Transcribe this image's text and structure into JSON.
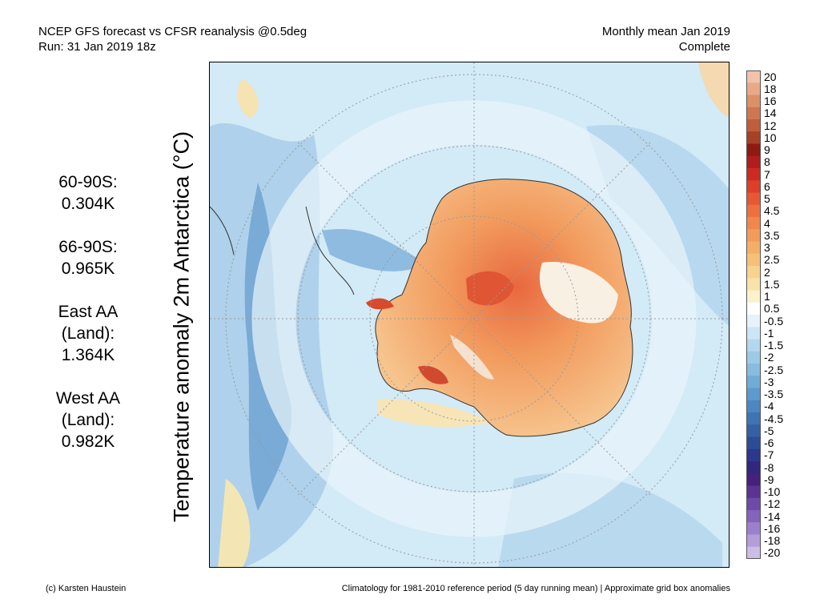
{
  "header": {
    "title_line1": "NCEP GFS forecast vs CFSR reanalysis @0.5deg",
    "title_line2": "Run: 31 Jan 2019 18z",
    "period_line1": "Monthly mean Jan 2019",
    "period_line2": "Complete"
  },
  "stats": [
    {
      "lines": [
        "60-90S:",
        "0.304K"
      ]
    },
    {
      "lines": [
        "66-90S:",
        "0.965K"
      ]
    },
    {
      "lines": [
        "East AA",
        "(Land):",
        "1.364K"
      ]
    },
    {
      "lines": [
        "West AA",
        "(Land):",
        "0.982K"
      ]
    }
  ],
  "map": {
    "ylabel": "Temperature anomaly 2m Antarctica (°C)",
    "colors": {
      "ocean_light": "#d6ecf8",
      "ocean_mid": "#b4d6ee",
      "ocean_dark": "#7fafd8",
      "land_orange": "#f3a56b",
      "land_light": "#f8d2a6",
      "land_red": "#e46a45",
      "warm_yellow": "#f7e9b9"
    }
  },
  "colorbar": {
    "labels": [
      "20",
      "18",
      "16",
      "14",
      "12",
      "10",
      "9",
      "8",
      "7",
      "6",
      "5",
      "4.5",
      "4",
      "3.5",
      "3",
      "2.5",
      "2",
      "1.5",
      "1",
      "0.5",
      "-0.5",
      "-1",
      "-1.5",
      "-2",
      "-2.5",
      "-3",
      "-3.5",
      "-4",
      "-4.5",
      "-5",
      "-6",
      "-7",
      "-8",
      "-9",
      "-10",
      "-12",
      "-14",
      "-16",
      "-18",
      "-20"
    ],
    "colors": [
      "#f2c2a9",
      "#e8a987",
      "#dd9068",
      "#cf7653",
      "#bf5d3d",
      "#a84027",
      "#8f1a12",
      "#b01d1a",
      "#cc2b22",
      "#dd3f28",
      "#e85733",
      "#ee7040",
      "#f1874d",
      "#f39b59",
      "#f5ae66",
      "#f6c078",
      "#f8d28e",
      "#f9e2a8",
      "#fbf1cd",
      "#ffffff",
      "#e6f3fb",
      "#cde6f5",
      "#b3d8ee",
      "#9ccbe7",
      "#86bcdf",
      "#71acd6",
      "#5d9acd",
      "#4c87c2",
      "#3e73b5",
      "#3460a6",
      "#2d4c98",
      "#2b388b",
      "#33267f",
      "#44217d",
      "#5a3394",
      "#6e4aab",
      "#8463bd",
      "#9b80cd",
      "#b39ddb",
      "#cbbce8"
    ]
  },
  "footer": {
    "left": "(c) Karsten Haustein",
    "right": "Climatology for 1981-2010 reference period (5 day running mean) | Approximate grid box anomalies"
  }
}
